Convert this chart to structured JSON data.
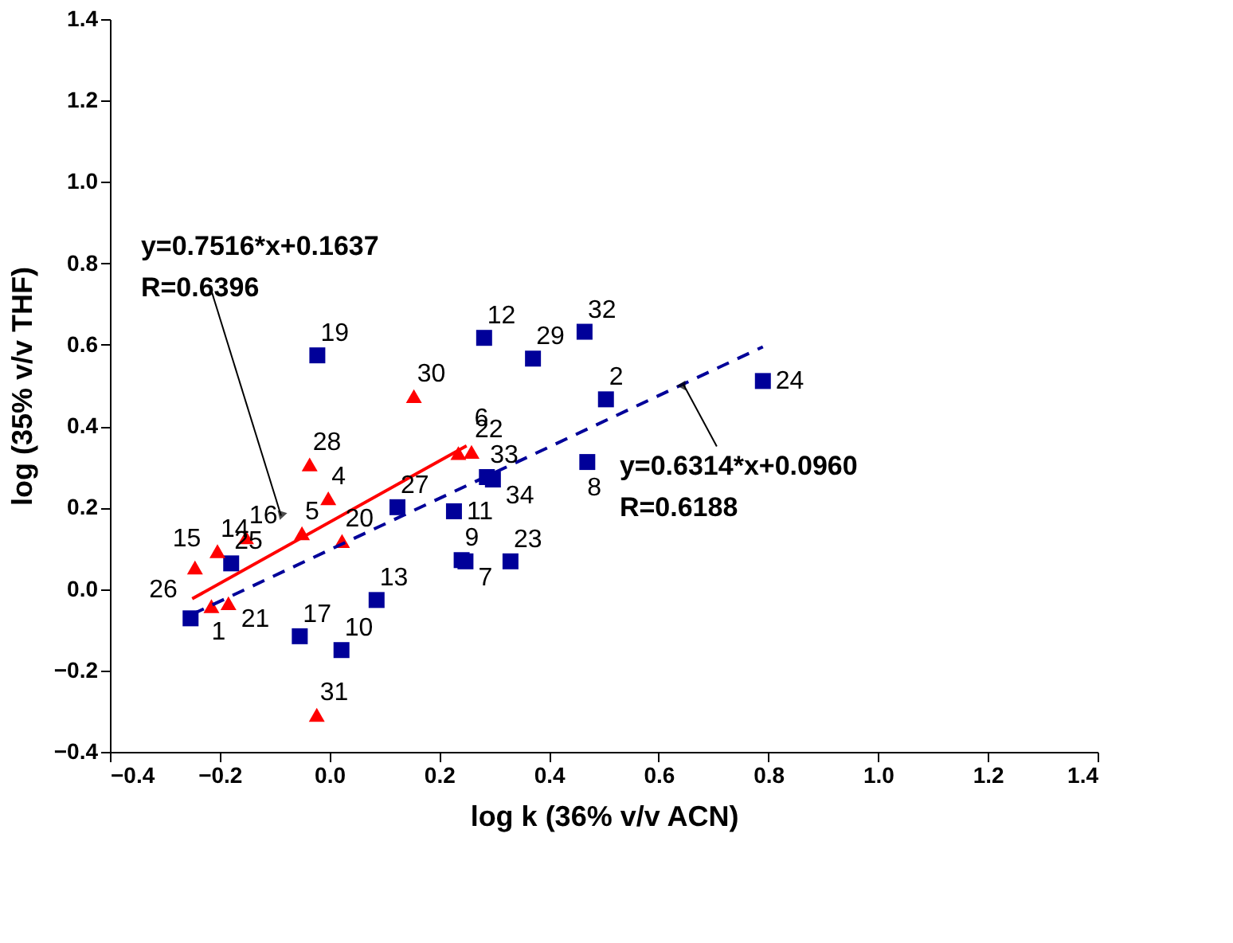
{
  "chart_data": {
    "type": "scatter",
    "xlabel": "log k (36% v/v ACN)",
    "ylabel": "log (35% v/v THF)",
    "xlim": [
      -0.4,
      1.4
    ],
    "xticks": [
      -0.4,
      -0.2,
      {
        "value": 0,
        "label": "0.0"
      },
      0.2,
      0.4,
      0.6,
      0.8,
      {
        "value": 1,
        "label": "1.0"
      },
      1.2,
      1.4
    ],
    "ylim": [
      -0.4,
      1.4
    ],
    "yticks": [
      -0.4,
      -0.2,
      {
        "value": 0,
        "label": "0.0"
      },
      0.2,
      0.4,
      0.6,
      0.8,
      {
        "value": 1,
        "label": "1.0"
      },
      1.2,
      1.4
    ],
    "grid": false,
    "series": [
      {
        "marker": "square",
        "color": "#000099",
        "x": [
          -0.022,
          0.282,
          0.124,
          0.227,
          0.241,
          0.248,
          0.33,
          0.086,
          -0.054,
          0.022,
          -0.253,
          -0.179,
          0.287,
          0.298,
          0.371,
          0.465,
          0.504,
          0.47,
          0.79
        ],
        "values": [
          0.574,
          0.617,
          0.201,
          0.191,
          0.071,
          0.068,
          0.068,
          -0.027,
          -0.116,
          -0.15,
          -0.072,
          0.063,
          0.275,
          0.269,
          0.566,
          0.632,
          0.466,
          0.312,
          0.511
        ]
      },
      {
        "marker": "triangle",
        "color": "#ff0000",
        "x": [
          0.154,
          -0.036,
          -0.002,
          -0.05,
          0.023,
          0.235,
          0.259,
          -0.023,
          -0.245,
          -0.204,
          -0.152,
          -0.215,
          -0.184
        ],
        "values": [
          0.474,
          0.306,
          0.223,
          0.137,
          0.118,
          0.334,
          0.337,
          -0.309,
          0.053,
          0.093,
          0.127,
          -0.042,
          -0.035
        ]
      },
      {
        "type": "line",
        "line_style": "solid",
        "color": "#ff0000",
        "x": [
          -0.25,
          0.25
        ],
        "values": [
          -0.024,
          0.352
        ]
      },
      {
        "type": "line",
        "line_style": "dashed",
        "color": "#000099",
        "x": [
          -0.25,
          0.79
        ],
        "values": [
          -0.062,
          0.595
        ]
      }
    ],
    "annotations": [
      {
        "text": "y=0.7516*x+0.1637\nR=0.6396",
        "x": -0.088,
        "y": 0.18
      },
      {
        "text": "y=0.6314*x+0.0960\nR=0.6188",
        "x": 0.645,
        "y": 0.503
      },
      {
        "text": "19",
        "x": -0.022,
        "y": 0.574
      },
      {
        "text": "12",
        "x": 0.282,
        "y": 0.617
      },
      {
        "text": "27",
        "x": 0.124,
        "y": 0.201
      },
      {
        "text": "11",
        "x": 0.227,
        "y": 0.191
      },
      {
        "text": "9",
        "x": 0.241,
        "y": 0.071
      },
      {
        "text": "7",
        "x": 0.248,
        "y": 0.068
      },
      {
        "text": "23",
        "x": 0.33,
        "y": 0.068
      },
      {
        "text": "13",
        "x": 0.086,
        "y": -0.027
      },
      {
        "text": "17",
        "x": -0.054,
        "y": -0.116
      },
      {
        "text": "10",
        "x": 0.022,
        "y": -0.15
      },
      {
        "text": "26",
        "x": -0.253,
        "y": -0.072
      },
      {
        "text": "25",
        "x": -0.179,
        "y": 0.063
      },
      {
        "text": "33",
        "x": 0.287,
        "y": 0.275
      },
      {
        "text": "34",
        "x": 0.298,
        "y": 0.269
      },
      {
        "text": "29",
        "x": 0.371,
        "y": 0.566
      },
      {
        "text": "32",
        "x": 0.465,
        "y": 0.632
      },
      {
        "text": "2",
        "x": 0.504,
        "y": 0.466
      },
      {
        "text": "8",
        "x": 0.47,
        "y": 0.312
      },
      {
        "text": "24",
        "x": 0.79,
        "y": 0.511
      },
      {
        "text": "30",
        "x": 0.154,
        "y": 0.474
      },
      {
        "text": "28",
        "x": -0.036,
        "y": 0.306
      },
      {
        "text": "4",
        "x": -0.002,
        "y": 0.223
      },
      {
        "text": "5",
        "x": -0.05,
        "y": 0.137
      },
      {
        "text": "20",
        "x": 0.023,
        "y": 0.118
      },
      {
        "text": "6",
        "x": 0.235,
        "y": 0.334
      },
      {
        "text": "22",
        "x": 0.259,
        "y": 0.337
      },
      {
        "text": "31",
        "x": -0.023,
        "y": -0.309
      },
      {
        "text": "15",
        "x": -0.245,
        "y": 0.053
      },
      {
        "text": "14",
        "x": -0.204,
        "y": 0.093
      },
      {
        "text": "16",
        "x": -0.152,
        "y": 0.127
      },
      {
        "text": "1",
        "x": -0.215,
        "y": -0.042
      },
      {
        "text": "21",
        "x": -0.184,
        "y": -0.035
      }
    ]
  }
}
